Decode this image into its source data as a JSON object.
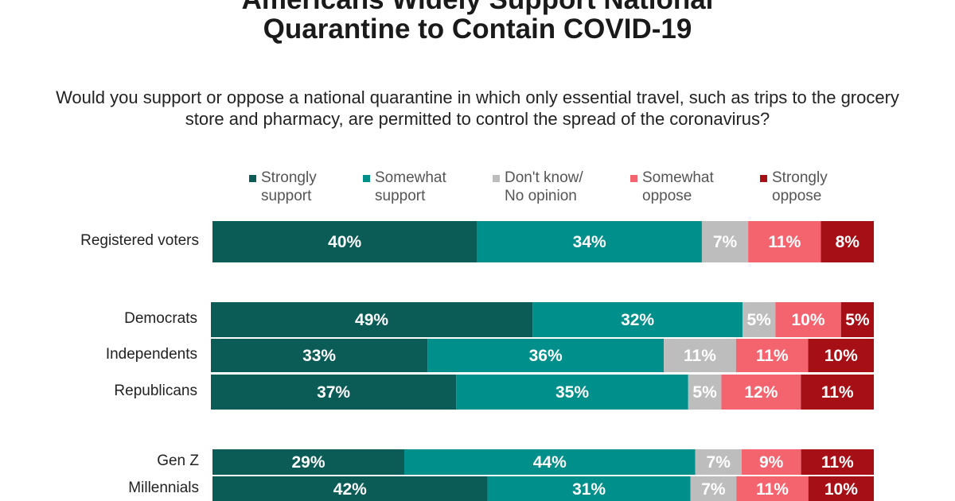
{
  "chart_data": {
    "type": "bar",
    "orientation": "horizontal",
    "stacked": true,
    "title_lines": [
      "Americans Widely Support National",
      "Quarantine to Contain COVID-19"
    ],
    "question": "Would you support or oppose a national quarantine in which only essential travel, such as trips to the grocery store and pharmacy, are permitted to control the spread of the coronavirus?",
    "legend_placement": "top",
    "series": [
      {
        "name": "Strongly support",
        "legend_lines": [
          "Strongly",
          "support"
        ],
        "color": "#0b5c57"
      },
      {
        "name": "Somewhat support",
        "legend_lines": [
          "Somewhat",
          "support"
        ],
        "color": "#008f8a"
      },
      {
        "name": "Don't know/ No opinion",
        "legend_lines": [
          "Don't know/",
          "No opinion"
        ],
        "color": "#bdbdbd"
      },
      {
        "name": "Somewhat oppose",
        "legend_lines": [
          "Somewhat",
          "oppose"
        ],
        "color": "#f4646f"
      },
      {
        "name": "Strongly oppose",
        "legend_lines": [
          "Strongly",
          "oppose"
        ],
        "color": "#a50f15"
      }
    ],
    "categories": [
      "Registered voters",
      "Democrats",
      "Independents",
      "Republicans",
      "Gen Z",
      "Millennials"
    ],
    "values": [
      [
        40,
        34,
        7,
        11,
        8
      ],
      [
        49,
        32,
        5,
        10,
        5
      ],
      [
        33,
        36,
        11,
        11,
        10
      ],
      [
        37,
        35,
        5,
        12,
        11
      ],
      [
        29,
        44,
        7,
        9,
        11
      ],
      [
        42,
        31,
        7,
        11,
        10
      ]
    ],
    "value_suffix": "%"
  }
}
